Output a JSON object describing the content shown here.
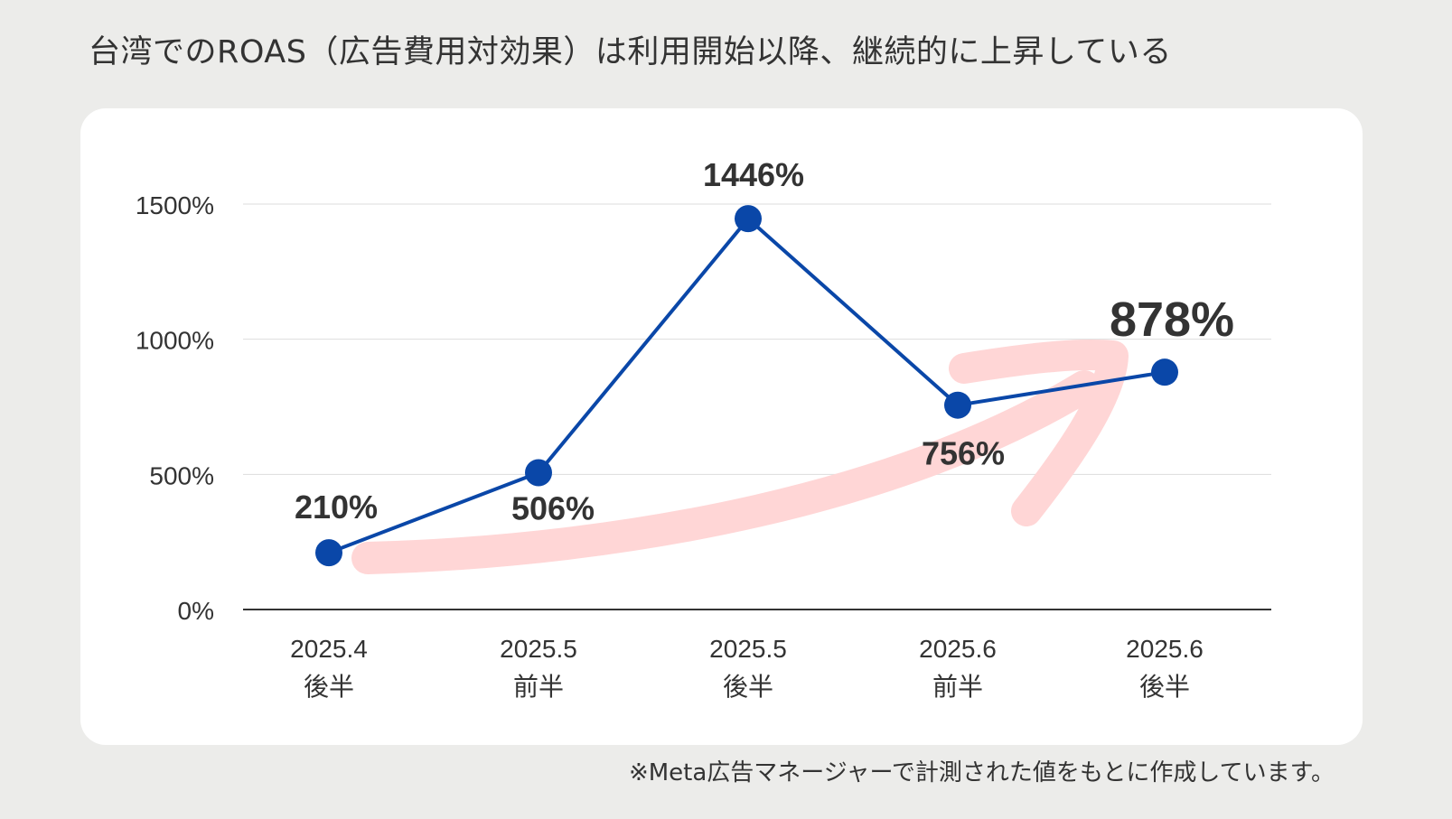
{
  "title": "台湾でのROAS（広告費用対効果）は利用開始以降、継続的に上昇している",
  "footnote": "※Meta広告マネージャーで計測された値をもとに作成しています。",
  "colors": {
    "background": "#ececea",
    "card": "#ffffff",
    "line": "#0a47a8",
    "marker": "#0a47a8",
    "trend_arrow": "#ffd6d6",
    "text": "#333333",
    "grid": "#dddddd",
    "axis": "#333333"
  },
  "chart_data": {
    "type": "line",
    "title": "",
    "xlabel": "",
    "ylabel": "",
    "categories": [
      [
        "2025.4",
        "後半"
      ],
      [
        "2025.5",
        "前半"
      ],
      [
        "2025.5",
        "後半"
      ],
      [
        "2025.6",
        "前半"
      ],
      [
        "2025.6",
        "後半"
      ]
    ],
    "series": [
      {
        "name": "",
        "values": [
          210,
          506,
          1446,
          756,
          878
        ]
      }
    ],
    "data_labels": [
      "210%",
      "506%",
      "1446%",
      "756%",
      "878%"
    ],
    "highlight_label_index": 4,
    "ylim": [
      0,
      1500
    ],
    "yticks": [
      0,
      500,
      1000,
      1500
    ],
    "ytick_labels": [
      "0%",
      "500%",
      "1000%",
      "1500%"
    ],
    "grid": true,
    "legend": "none",
    "annotation": "upward trend arrow"
  }
}
